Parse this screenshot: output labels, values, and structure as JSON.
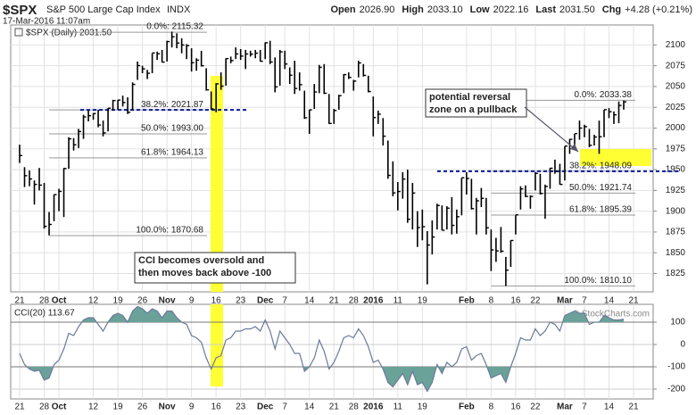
{
  "chart_data": {
    "type": "ohlc",
    "symbol": "$SPX",
    "name": "S&P 500 Large Cap Index",
    "exchange": "INDX",
    "timestamp": "17-Mar-2016 11:07am",
    "quote": [
      {
        "label": "Open",
        "value": "2026.90"
      },
      {
        "label": "High",
        "value": "2033.10"
      },
      {
        "label": "Low",
        "value": "2022.16"
      },
      {
        "label": "Last",
        "value": "2031.50"
      },
      {
        "label": "Chg",
        "value": "+4.28 (+0.21%)"
      }
    ],
    "series_label": "$SPX (Daily) 2031.50",
    "watermark": "© StockCharts.com",
    "color": "#000000",
    "grid": true,
    "categories": [
      "21",
      null,
      null,
      null,
      null,
      "28",
      null,
      null,
      "Oct",
      null,
      null,
      null,
      null,
      null,
      null,
      "12",
      null,
      null,
      null,
      null,
      "19",
      null,
      null,
      null,
      null,
      "26",
      null,
      null,
      null,
      null,
      "Nov",
      null,
      null,
      null,
      null,
      "9",
      null,
      null,
      null,
      null,
      "16",
      null,
      null,
      null,
      null,
      "23",
      null,
      null,
      null,
      null,
      "Dec",
      null,
      null,
      null,
      "7",
      null,
      null,
      null,
      null,
      "14",
      null,
      null,
      null,
      null,
      "21",
      null,
      null,
      null,
      "28",
      null,
      null,
      null,
      "2016",
      null,
      null,
      null,
      null,
      "11",
      null,
      null,
      null,
      null,
      "19",
      null,
      null,
      null,
      null,
      null,
      null,
      null,
      null,
      "Feb",
      null,
      null,
      null,
      null,
      "8",
      null,
      null,
      null,
      null,
      "16",
      null,
      null,
      null,
      "22",
      null,
      null,
      null,
      null,
      null,
      "Mar",
      null,
      null,
      null,
      "7",
      null,
      null,
      null,
      null,
      "14",
      null,
      null,
      null,
      null,
      "21"
    ],
    "high": [
      1980,
      1953,
      1949,
      1937,
      1952,
      1934,
      1899,
      1920,
      1927,
      1952,
      1989,
      1988,
      1999,
      2016,
      2021,
      2018,
      2022,
      2009,
      2024,
      2034,
      2034,
      2039,
      2037,
      2055,
      2080,
      2075,
      2070,
      2090,
      2092,
      2094,
      2105,
      2116,
      2114,
      2108,
      2101,
      2096,
      2084,
      2093,
      2072,
      2044,
      2054,
      2067,
      2084,
      2086,
      2097,
      2095,
      2094,
      2093,
      2094,
      2094,
      2103,
      2105,
      2085,
      2094,
      2093,
      2073,
      2081,
      2067,
      2045,
      2022,
      2053,
      2076,
      2077,
      2041,
      2023,
      2040,
      2065,
      2067,
      2058,
      2081,
      2077,
      2063,
      2038,
      2021,
      2012,
      1985,
      1960,
      1935,
      1947,
      1950,
      1934,
      1900,
      1902,
      1876,
      1889,
      1909,
      1907,
      1906,
      1917,
      1902,
      1940,
      1947,
      1939,
      1916,
      1928,
      1916,
      1878,
      1868,
      1881,
      1845,
      1865,
      1895,
      1930,
      1931,
      1919,
      1947,
      1945,
      1932,
      1952,
      1962,
      1957,
      1978,
      1987,
      1993,
      2009,
      2004,
      1999,
      1992,
      2009,
      2022,
      2024,
      2020,
      2032,
      2033.1,
      null,
      null
    ],
    "low": [
      1958,
      1929,
      1930,
      1908,
      1925,
      1879,
      1871,
      1888,
      1900,
      1893,
      1951,
      1973,
      1976,
      1987,
      2008,
      2010,
      2001,
      1990,
      1996,
      2021,
      2022,
      2026,
      2017,
      2021,
      2058,
      2066,
      2059,
      2066,
      2082,
      2079,
      2080,
      2097,
      2096,
      2090,
      2083,
      2068,
      2069,
      2074,
      2045,
      2022,
      2019,
      2046,
      2051,
      2078,
      2083,
      2082,
      2071,
      2086,
      2084,
      2080,
      2083,
      2077,
      2043,
      2051,
      2071,
      2053,
      2041,
      2045,
      2011,
      1993,
      2023,
      2042,
      2041,
      2005,
      2005,
      2022,
      2042,
      2059,
      2045,
      2061,
      2062,
      2043,
      1990,
      2005,
      1979,
      1939,
      1918,
      1901,
      1915,
      1886,
      1878,
      1857,
      1865,
      1812,
      1848,
      1878,
      1877,
      1878,
      1872,
      1873,
      1895,
      1920,
      1902,
      1872,
      1905,
      1872,
      1828,
      1839,
      1850,
      1810,
      1833,
      1872,
      1902,
      1917,
      1903,
      1925,
      1920,
      1891,
      1927,
      1945,
      1932,
      1937,
      1969,
      1977,
      1986,
      1989,
      1977,
      1979,
      1969,
      1989,
      2012,
      2005,
      2006,
      2022.16,
      null,
      null
    ],
    "close": [
      1966.97,
      1942.74,
      1938.76,
      1932.24,
      1931.34,
      1881.77,
      1884.09,
      1920.03,
      1923.82,
      1951.36,
      1987.05,
      1979.92,
      1995.83,
      2013.43,
      2014.89,
      2017.46,
      2003.69,
      1994.24,
      2023.86,
      2033.11,
      2033.66,
      2030.77,
      2018.94,
      2052.51,
      2075.15,
      2071.18,
      2065.89,
      2090.35,
      2089.41,
      2079.36,
      2104.05,
      2109.79,
      2102.31,
      2099.93,
      2099.2,
      2078.58,
      2081.72,
      2075,
      2045.97,
      2023.04,
      2053.19,
      2050.44,
      2083.58,
      2081.24,
      2089.17,
      2086.59,
      2089.14,
      2088.87,
      2090.11,
      2080.41,
      2102.63,
      2079.51,
      2049.62,
      2091.69,
      2077.07,
      2063.59,
      2047.62,
      2052.23,
      2012.37,
      2021.94,
      2043.41,
      2073.07,
      2041.89,
      2005.55,
      2021.15,
      2038.97,
      2064.29,
      2060.99,
      2056.5,
      2078.36,
      2063.36,
      2043.94,
      2012.66,
      2016.71,
      1990.26,
      1943.09,
      1922.03,
      1923.67,
      1938.68,
      1890.28,
      1921.84,
      1880.33,
      1881.33,
      1859.33,
      1868.99,
      1906.9,
      1877.08,
      1903.63,
      1882.95,
      1893.36,
      1940.24,
      1939.38,
      1903.03,
      1912.53,
      1915.45,
      1880.05,
      1853.44,
      1852.21,
      1851.86,
      1829.08,
      1864.78,
      1895.58,
      1926.82,
      1917.83,
      1917.78,
      1945.5,
      1921.27,
      1929.8,
      1951.7,
      1948.05,
      1932.23,
      1978.35,
      1986.45,
      1993.4,
      1999.99,
      2001.76,
      1979.26,
      1989.26,
      1989.57,
      2022.19,
      2019.64,
      2015.93,
      2027.22,
      2031.5,
      null,
      null
    ],
    "ylim": [
      1803,
      2124
    ],
    "yticks": [
      1825,
      1850,
      1875,
      1900,
      1925,
      1950,
      1975,
      2000,
      2025,
      2050,
      2075,
      2100
    ],
    "fib_sets": [
      {
        "levels": [
          {
            "label": "0.0%: 2115.32",
            "value": 2115.32
          },
          {
            "label": "38.2%: 2021.87",
            "value": 2021.87
          },
          {
            "label": "50.0%: 1993.00",
            "value": 1993.0
          },
          {
            "label": "61.8%: 1964.13",
            "value": 1964.13
          },
          {
            "label": "100.0%: 1870.68",
            "value": 1870.68
          }
        ]
      },
      {
        "levels": [
          {
            "label": "0.0%: 2033.38",
            "value": 2033.38
          },
          {
            "label": "38.2%: 1948.09",
            "value": 1948.09
          },
          {
            "label": "50.0%: 1921.74",
            "value": 1921.74
          },
          {
            "label": "61.8%: 1895.39",
            "value": 1895.39
          },
          {
            "label": "100.0%: 1810.10",
            "value": 1810.1
          }
        ]
      }
    ],
    "annotations": [
      {
        "lines": [
          "potential reversal",
          "zone on a pullback"
        ]
      },
      {
        "lines": [
          "CCI becomes oversold and",
          "then moves back above -100"
        ]
      }
    ],
    "cci": {
      "type": "line",
      "label": "CCI(20) 113.67",
      "color": "#6b7a99",
      "fill_color": "#6aa29a",
      "overbought": 100,
      "oversold": -100,
      "ylim": [
        -244,
        180
      ],
      "yticks": [
        100,
        0,
        -100,
        -200
      ],
      "values": [
        -40,
        -90,
        -110,
        -120,
        -115,
        -160,
        -150,
        -90,
        -70,
        -20,
        50,
        40,
        80,
        110,
        120,
        120,
        90,
        60,
        100,
        130,
        140,
        130,
        100,
        150,
        170,
        160,
        140,
        160,
        150,
        120,
        150,
        150,
        120,
        100,
        90,
        40,
        30,
        10,
        -60,
        -110,
        -60,
        -50,
        20,
        30,
        60,
        60,
        70,
        70,
        80,
        60,
        110,
        60,
        -20,
        60,
        30,
        0,
        -40,
        -40,
        -120,
        -100,
        -60,
        20,
        -30,
        -110,
        -80,
        -30,
        30,
        40,
        30,
        70,
        40,
        -10,
        -80,
        -70,
        -110,
        -170,
        -190,
        -160,
        -130,
        -180,
        -120,
        -180,
        -170,
        -210,
        -170,
        -90,
        -130,
        -80,
        -100,
        -80,
        -20,
        -10,
        -70,
        -50,
        -40,
        -90,
        -150,
        -140,
        -130,
        -170,
        -100,
        -40,
        30,
        20,
        20,
        70,
        40,
        60,
        100,
        90,
        60,
        130,
        140,
        150,
        140,
        140,
        90,
        100,
        100,
        130,
        120,
        110,
        110,
        113.67,
        null,
        null
      ]
    }
  }
}
